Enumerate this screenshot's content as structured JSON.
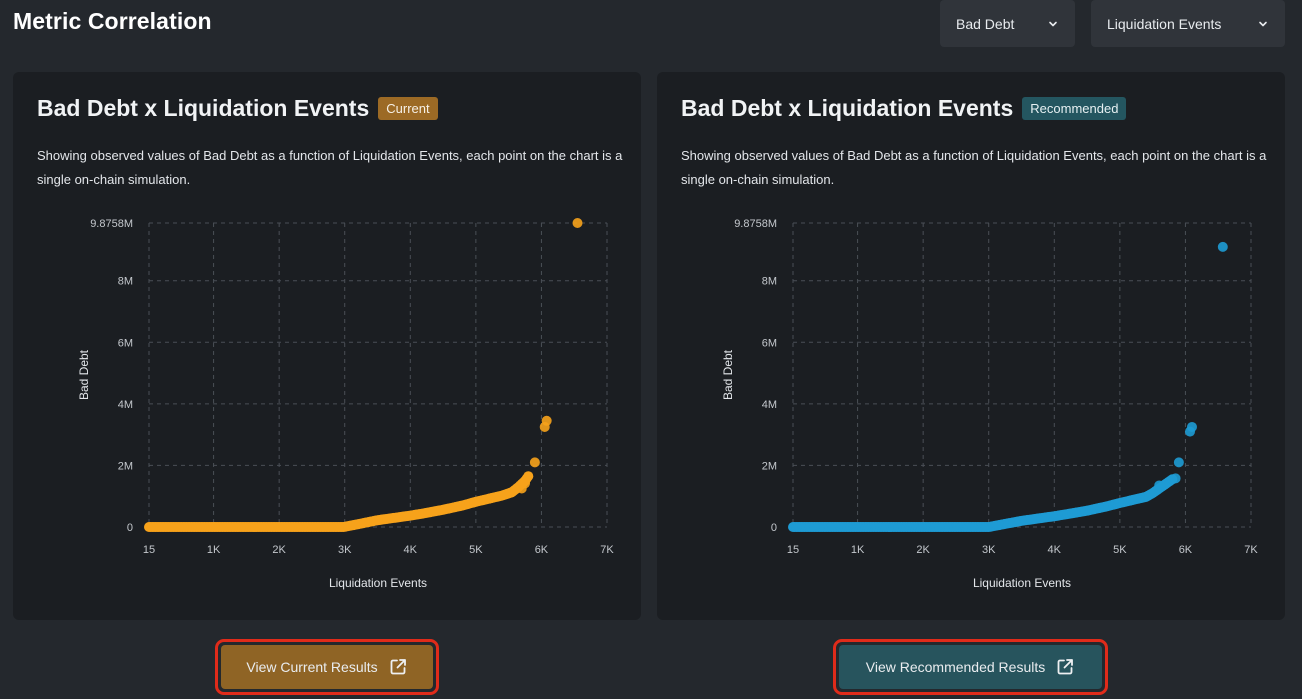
{
  "page": {
    "title": "Metric Correlation"
  },
  "dropdowns": [
    {
      "selected": "Bad Debt"
    },
    {
      "selected": "Liquidation Events"
    }
  ],
  "cards": {
    "current": {
      "title": "Bad Debt x Liquidation Events",
      "badge": "Current",
      "description": "Showing observed values of Bad Debt as a function of Liquidation Events, each point on the chart is a single on-chain simulation.",
      "button_label": "View Current Results"
    },
    "recommended": {
      "title": "Bad Debt x Liquidation Events",
      "badge": "Recommended",
      "description": "Showing observed values of Bad Debt as a function of Liquidation Events, each point on the chart is a single on-chain simulation.",
      "button_label": "View Recommended Results"
    }
  },
  "colors": {
    "current": "#f7a21b",
    "recommended": "#1e9bd4",
    "grid": "#4a4f56",
    "tick_text": "#c4c8cd"
  },
  "chart_data": [
    {
      "type": "scatter",
      "name": "current",
      "title": "Bad Debt x Liquidation Events",
      "xlabel": "Liquidation Events",
      "ylabel": "Bad Debt",
      "xlim": [
        15,
        7000
      ],
      "ylim": [
        0,
        9875800
      ],
      "x_ticks": [
        15,
        1000,
        2000,
        3000,
        4000,
        5000,
        6000,
        7000
      ],
      "x_tick_labels": [
        "15",
        "1K",
        "2K",
        "3K",
        "4K",
        "5K",
        "6K",
        "7K"
      ],
      "y_ticks": [
        0,
        2000000,
        4000000,
        6000000,
        8000000,
        9875800
      ],
      "y_tick_labels": [
        "0",
        "2M",
        "4M",
        "6M",
        "8M",
        "9.8758M"
      ],
      "curve": [
        [
          15,
          0
        ],
        [
          2980,
          0
        ],
        [
          3200,
          90000
        ],
        [
          3500,
          220000
        ],
        [
          3800,
          310000
        ],
        [
          4000,
          370000
        ],
        [
          4200,
          440000
        ],
        [
          4500,
          560000
        ],
        [
          4800,
          700000
        ],
        [
          5000,
          820000
        ],
        [
          5200,
          920000
        ],
        [
          5400,
          1020000
        ],
        [
          5550,
          1130000
        ],
        [
          5650,
          1300000
        ],
        [
          5750,
          1500000
        ],
        [
          5800,
          1650000
        ]
      ],
      "outliers": [
        [
          5700,
          1250000
        ],
        [
          5750,
          1420000
        ],
        [
          5900,
          2100000
        ],
        [
          6050,
          3250000
        ],
        [
          6080,
          3450000
        ],
        [
          6550,
          9875800
        ]
      ]
    },
    {
      "type": "scatter",
      "name": "recommended",
      "title": "Bad Debt x Liquidation Events",
      "xlabel": "Liquidation Events",
      "ylabel": "Bad Debt",
      "xlim": [
        15,
        7000
      ],
      "ylim": [
        0,
        9875800
      ],
      "x_ticks": [
        15,
        1000,
        2000,
        3000,
        4000,
        5000,
        6000,
        7000
      ],
      "x_tick_labels": [
        "15",
        "1K",
        "2K",
        "3K",
        "4K",
        "5K",
        "6K",
        "7K"
      ],
      "y_ticks": [
        0,
        2000000,
        4000000,
        6000000,
        8000000,
        9875800
      ],
      "y_tick_labels": [
        "0",
        "2M",
        "4M",
        "6M",
        "8M",
        "9.8758M"
      ],
      "curve": [
        [
          15,
          0
        ],
        [
          3000,
          0
        ],
        [
          3200,
          80000
        ],
        [
          3500,
          200000
        ],
        [
          3800,
          290000
        ],
        [
          4000,
          350000
        ],
        [
          4200,
          420000
        ],
        [
          4500,
          530000
        ],
        [
          4800,
          670000
        ],
        [
          5000,
          780000
        ],
        [
          5200,
          880000
        ],
        [
          5400,
          980000
        ],
        [
          5500,
          1100000
        ],
        [
          5600,
          1250000
        ],
        [
          5700,
          1400000
        ],
        [
          5800,
          1550000
        ]
      ],
      "outliers": [
        [
          5600,
          1350000
        ],
        [
          5850,
          1580000
        ],
        [
          5900,
          2100000
        ],
        [
          6070,
          3100000
        ],
        [
          6100,
          3250000
        ],
        [
          6570,
          9100000
        ]
      ]
    }
  ]
}
